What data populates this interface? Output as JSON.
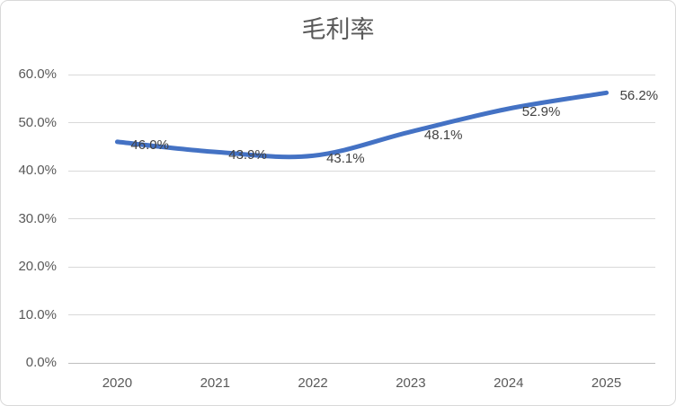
{
  "chart_data": {
    "type": "line",
    "title": "毛利率",
    "categories": [
      "2020",
      "2021",
      "2022",
      "2023",
      "2024",
      "2025"
    ],
    "series": [
      {
        "name": "毛利率",
        "values": [
          46.0,
          43.9,
          43.1,
          48.1,
          52.9,
          56.2
        ],
        "data_labels": [
          "46.0%",
          "43.9%",
          "43.1%",
          "48.1%",
          "52.9%",
          "56.2%"
        ],
        "color": "#4472C4",
        "smooth": true
      }
    ],
    "xlabel": "",
    "ylabel": "",
    "ylim": [
      0,
      60
    ],
    "y_ticks": [
      {
        "value": 60,
        "label": "60.0%"
      },
      {
        "value": 50,
        "label": "50.0%"
      },
      {
        "value": 40,
        "label": "40.0%"
      },
      {
        "value": 30,
        "label": "30.0%"
      },
      {
        "value": 20,
        "label": "20.0%"
      },
      {
        "value": 10,
        "label": "10.0%"
      },
      {
        "value": 0,
        "label": "0.0%"
      }
    ],
    "grid": true,
    "legend": "none"
  },
  "colors": {
    "line": "#4472C4",
    "gridline": "#D9D9D9",
    "axis_line": "#BFBFBF",
    "axis_text": "#595959",
    "title_text": "#595959",
    "data_label_text": "#404040",
    "border": "#D9D9D9",
    "background": "#FFFFFF"
  }
}
